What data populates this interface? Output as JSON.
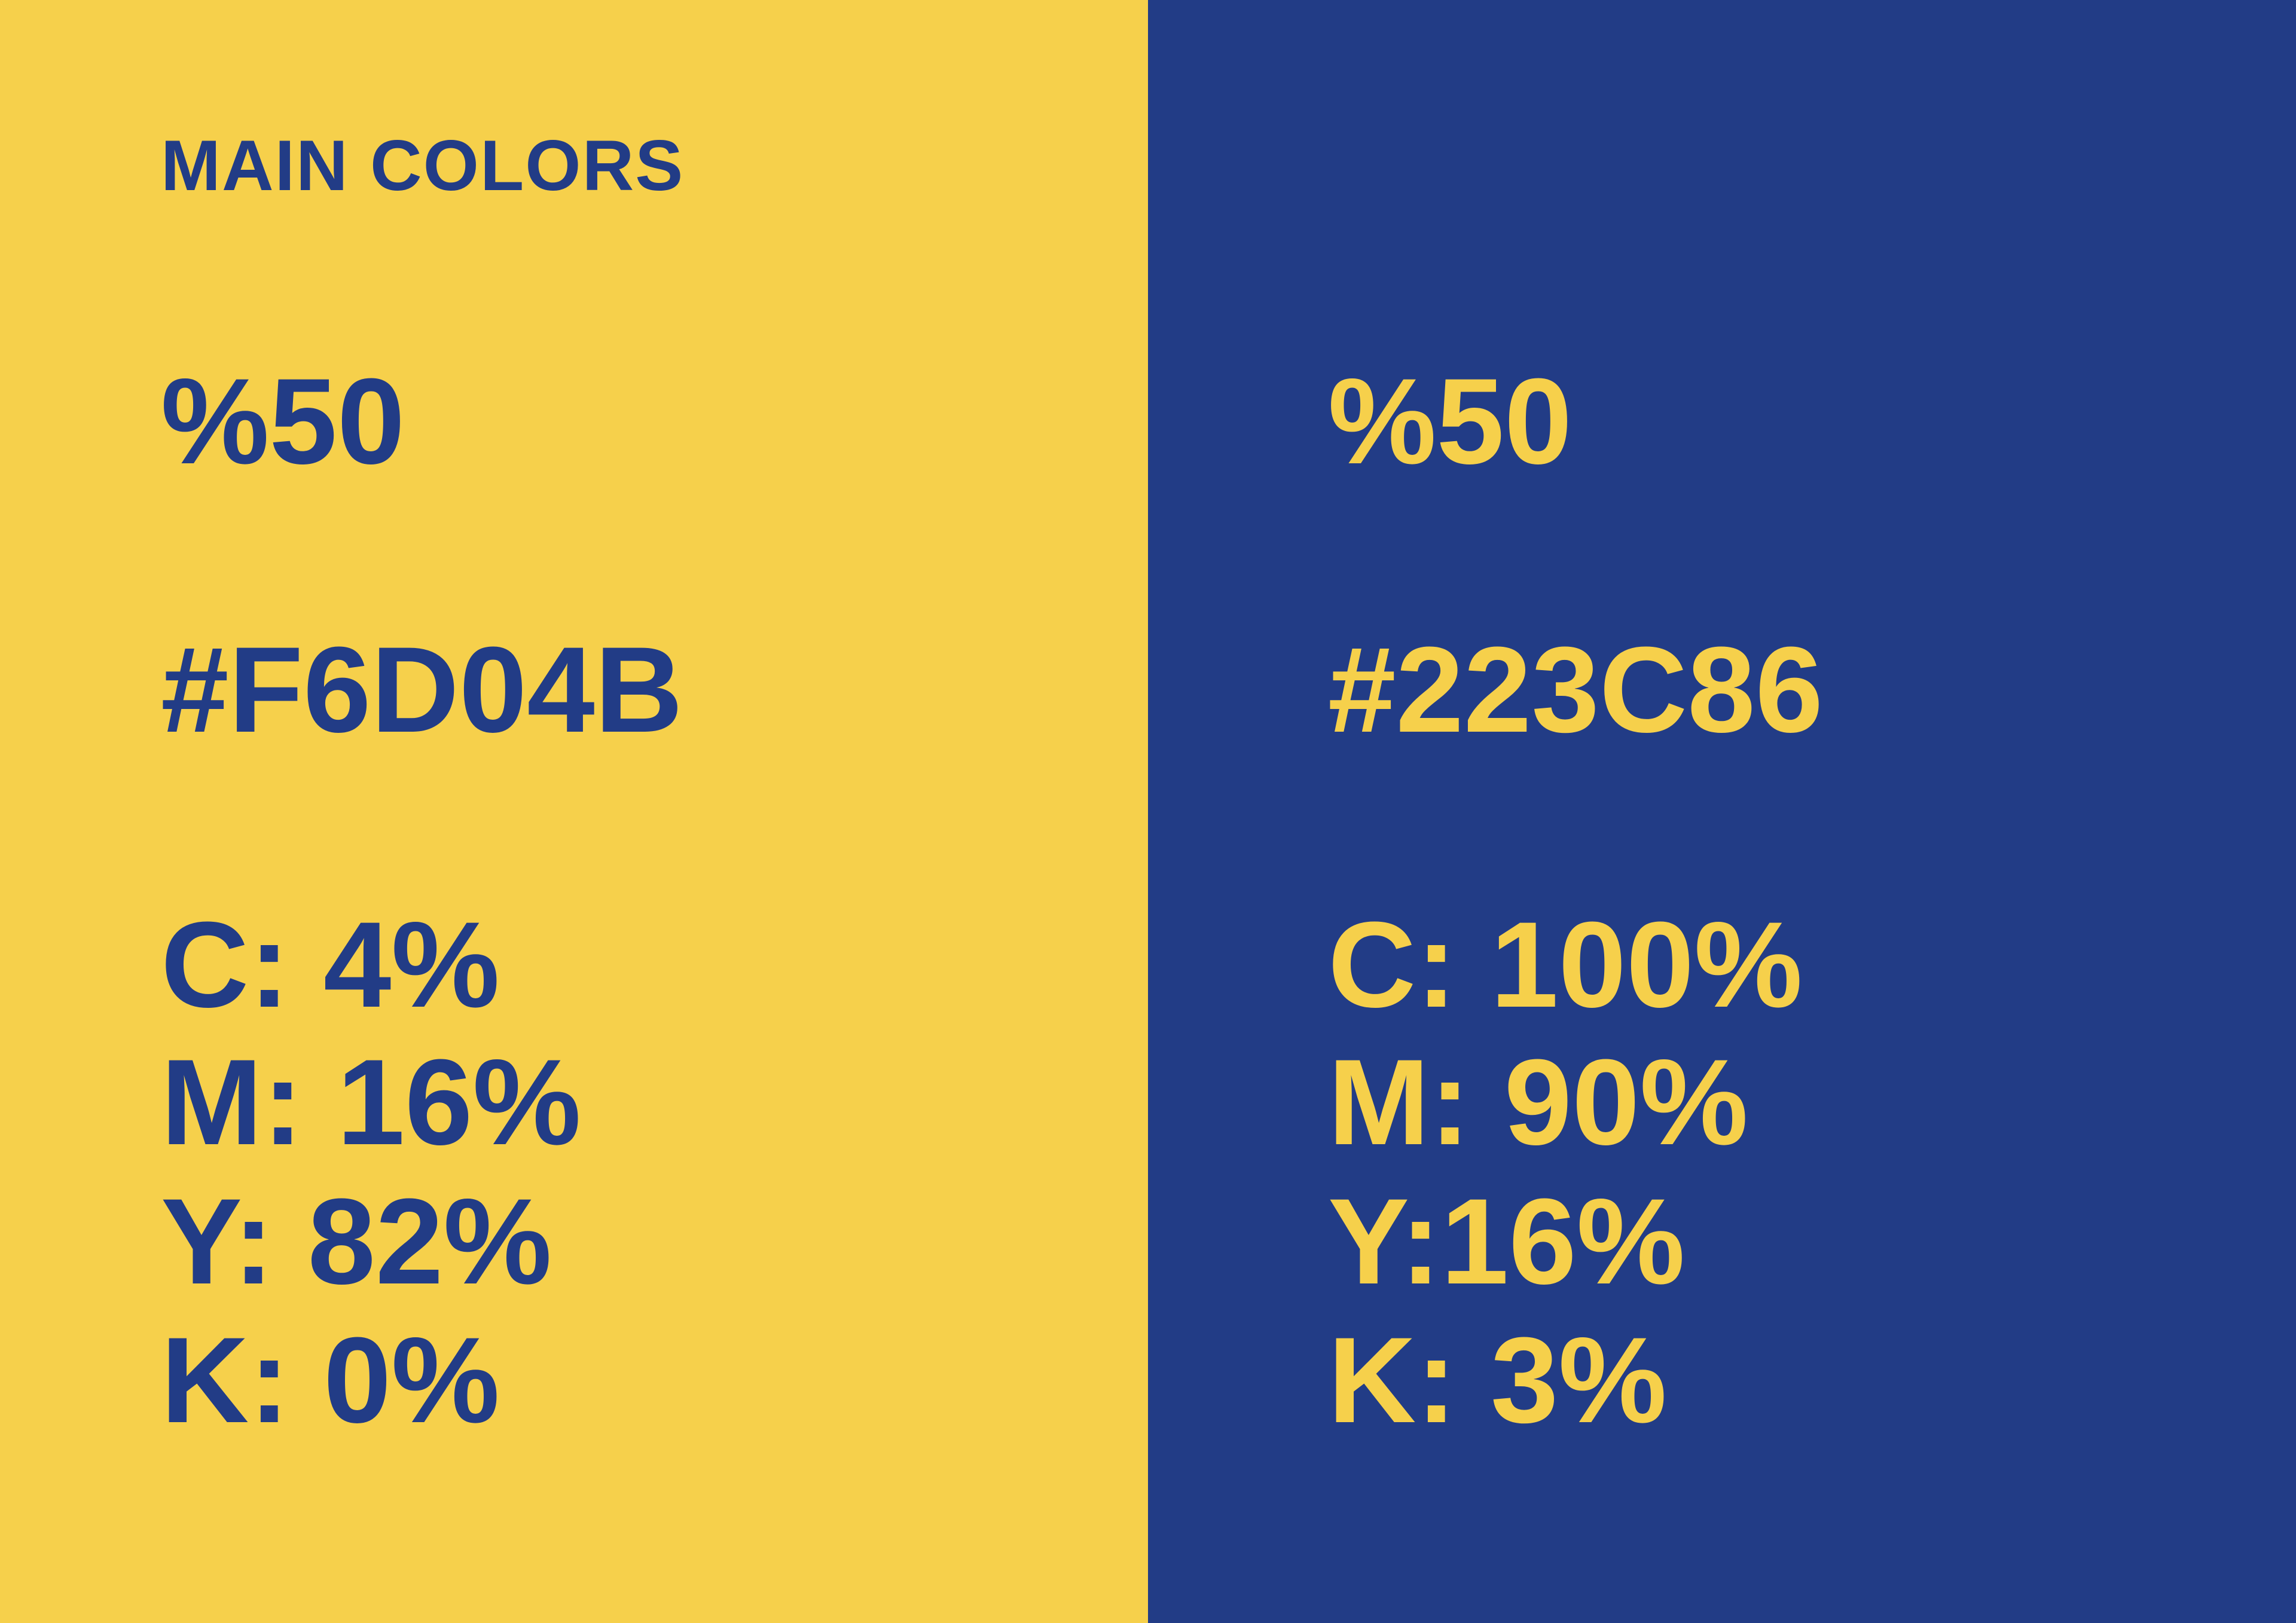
{
  "heading": "MAIN COLORS",
  "swatches": [
    {
      "background": "#F6D04B",
      "text_color": "#223C86",
      "percent": "%50",
      "hex": "#F6D04B",
      "cmyk": [
        "C: 4%",
        "M: 16%",
        "Y: 82%",
        "K: 0%"
      ]
    },
    {
      "background": "#223C86",
      "text_color": "#F6D04B",
      "percent": "%50",
      "hex": "#223C86",
      "cmyk": [
        "C: 100%",
        "M: 90%",
        "Y:16%",
        "K: 3%"
      ]
    }
  ]
}
